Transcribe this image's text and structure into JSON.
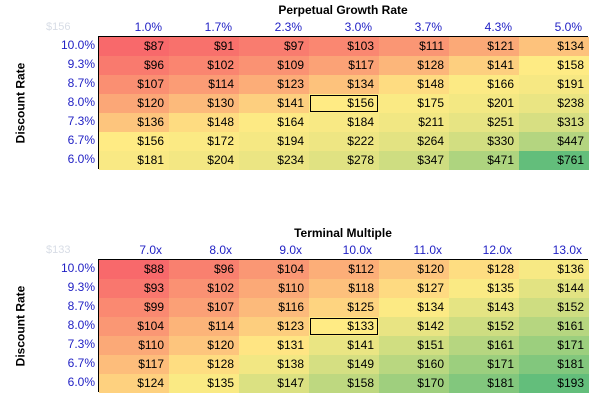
{
  "tables": [
    {
      "title": "Perpetual Growth Rate",
      "row_axis_label": "Discount Rate",
      "corner_value": "$156",
      "columns": [
        "1.0%",
        "1.7%",
        "2.3%",
        "3.0%",
        "3.7%",
        "4.3%",
        "5.0%"
      ],
      "rows": [
        "10.0%",
        "9.3%",
        "8.7%",
        "8.0%",
        "7.3%",
        "6.7%",
        "6.0%"
      ],
      "cells": [
        [
          "$87",
          "$91",
          "$97",
          "$103",
          "$111",
          "$121",
          "$134"
        ],
        [
          "$96",
          "$102",
          "$109",
          "$117",
          "$128",
          "$141",
          "$158"
        ],
        [
          "$107",
          "$114",
          "$123",
          "$134",
          "$148",
          "$166",
          "$191"
        ],
        [
          "$120",
          "$130",
          "$141",
          "$156",
          "$175",
          "$201",
          "$238"
        ],
        [
          "$136",
          "$148",
          "$164",
          "$184",
          "$211",
          "$251",
          "$313"
        ],
        [
          "$156",
          "$172",
          "$194",
          "$222",
          "$264",
          "$330",
          "$447"
        ],
        [
          "$181",
          "$204",
          "$234",
          "$278",
          "$347",
          "$471",
          "$761"
        ]
      ],
      "values": [
        [
          87,
          91,
          97,
          103,
          111,
          121,
          134
        ],
        [
          96,
          102,
          109,
          117,
          128,
          141,
          158
        ],
        [
          107,
          114,
          123,
          134,
          148,
          166,
          191
        ],
        [
          120,
          130,
          141,
          156,
          175,
          201,
          238
        ],
        [
          136,
          148,
          164,
          184,
          211,
          251,
          313
        ],
        [
          156,
          172,
          194,
          222,
          264,
          330,
          447
        ],
        [
          181,
          204,
          234,
          278,
          347,
          471,
          761
        ]
      ],
      "base_cell": [
        3,
        3
      ]
    },
    {
      "title": "Terminal Multiple",
      "row_axis_label": "Discount Rate",
      "corner_value": "$133",
      "columns": [
        "7.0x",
        "8.0x",
        "9.0x",
        "10.0x",
        "11.0x",
        "12.0x",
        "13.0x"
      ],
      "rows": [
        "10.0%",
        "9.3%",
        "8.7%",
        "8.0%",
        "7.3%",
        "6.7%",
        "6.0%"
      ],
      "cells": [
        [
          "$88",
          "$96",
          "$104",
          "$112",
          "$120",
          "$128",
          "$136"
        ],
        [
          "$93",
          "$102",
          "$110",
          "$118",
          "$127",
          "$135",
          "$144"
        ],
        [
          "$99",
          "$107",
          "$116",
          "$125",
          "$134",
          "$143",
          "$152"
        ],
        [
          "$104",
          "$114",
          "$123",
          "$133",
          "$142",
          "$152",
          "$161"
        ],
        [
          "$110",
          "$120",
          "$131",
          "$141",
          "$151",
          "$161",
          "$171"
        ],
        [
          "$117",
          "$128",
          "$138",
          "$149",
          "$160",
          "$171",
          "$181"
        ],
        [
          "$124",
          "$135",
          "$147",
          "$158",
          "$170",
          "$181",
          "$193"
        ]
      ],
      "values": [
        [
          88,
          96,
          104,
          112,
          120,
          128,
          136
        ],
        [
          93,
          102,
          110,
          118,
          127,
          135,
          144
        ],
        [
          99,
          107,
          116,
          125,
          134,
          143,
          152
        ],
        [
          104,
          114,
          123,
          133,
          142,
          152,
          161
        ],
        [
          110,
          120,
          131,
          141,
          151,
          161,
          171
        ],
        [
          117,
          128,
          138,
          149,
          160,
          171,
          181
        ],
        [
          124,
          135,
          147,
          158,
          170,
          181,
          193
        ]
      ],
      "base_cell": [
        3,
        3
      ]
    }
  ],
  "colors": {
    "low": "#f8696b",
    "mid": "#ffeb84",
    "high": "#63be7b",
    "header_text": "#1f1fc4",
    "corner_text": "#d8dde6"
  }
}
